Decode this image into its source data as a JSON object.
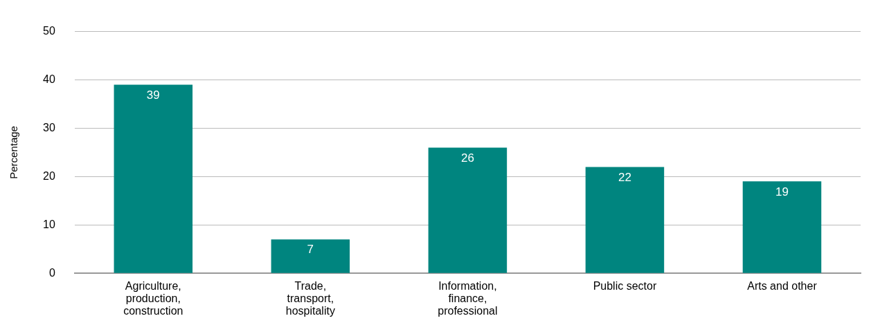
{
  "chart_data": {
    "type": "bar",
    "ylabel": "Percentage",
    "categories": [
      "Agriculture, production, construction",
      "Trade, transport, hospitality",
      "Information, finance, professional",
      "Public sector",
      "Arts and other"
    ],
    "values": [
      39,
      7,
      26,
      22,
      19
    ],
    "color": "#00857f",
    "ylim": [
      0,
      50
    ],
    "yticks": [
      0,
      10,
      20,
      30,
      40,
      50
    ],
    "grid": "y",
    "data_labels": true,
    "legend": false
  }
}
